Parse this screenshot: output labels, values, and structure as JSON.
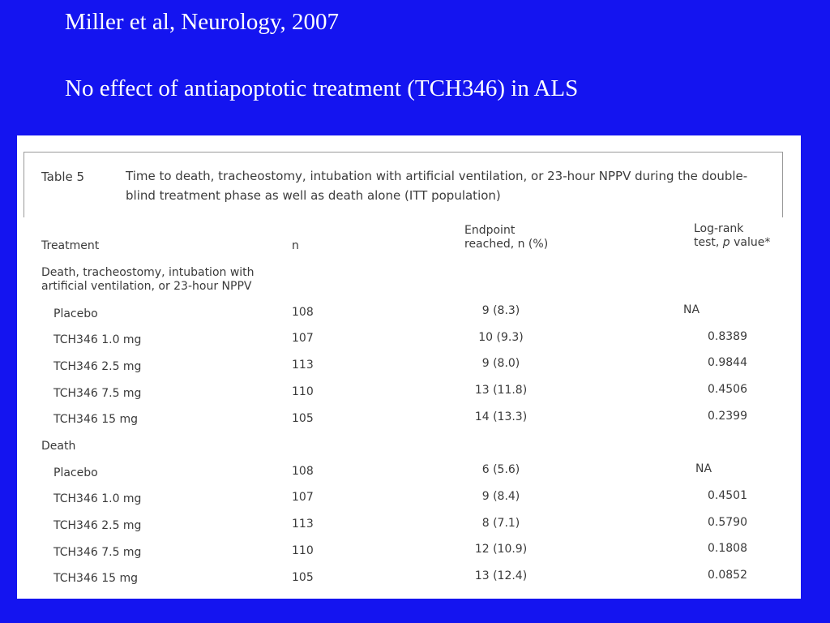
{
  "slide": {
    "title1": "Miller et al, Neurology, 2007",
    "title2": "No effect of antiapoptotic treatment (TCH346) in ALS"
  },
  "table": {
    "label": "Table 5",
    "caption": "Time to death, tracheostomy, intubation with artificial ventilation, or 23-hour NPPV during the double-blind treatment phase as well as death alone (ITT population)",
    "headers": {
      "treatment": "Treatment",
      "n": "n",
      "endpoint_line1": "Endpoint",
      "endpoint_line2": "reached, n (%)",
      "logrank_line1": "Log-rank",
      "logrank_line2_prefix": "test, ",
      "logrank_line2_p": "p",
      "logrank_line2_suffix": " value*"
    },
    "groups": [
      {
        "title_line1": "Death, tracheostomy, intubation with",
        "title_line2": "artificial ventilation, or 23-hour NPPV",
        "rows": [
          {
            "treatment": "Placebo",
            "n": "108",
            "endpoint": "9 (8.3)",
            "p": "NA"
          },
          {
            "treatment": "TCH346 1.0 mg",
            "n": "107",
            "endpoint": "10 (9.3)",
            "p": "0.8389"
          },
          {
            "treatment": "TCH346 2.5 mg",
            "n": "113",
            "endpoint": "9 (8.0)",
            "p": "0.9844"
          },
          {
            "treatment": "TCH346 7.5 mg",
            "n": "110",
            "endpoint": "13 (11.8)",
            "p": "0.4506"
          },
          {
            "treatment": "TCH346 15 mg",
            "n": "105",
            "endpoint": "14 (13.3)",
            "p": "0.2399"
          }
        ]
      },
      {
        "title_line1": "Death",
        "title_line2": "",
        "rows": [
          {
            "treatment": "Placebo",
            "n": "108",
            "endpoint": "6 (5.6)",
            "p": "NA"
          },
          {
            "treatment": "TCH346 1.0 mg",
            "n": "107",
            "endpoint": "9 (8.4)",
            "p": "0.4501"
          },
          {
            "treatment": "TCH346 2.5 mg",
            "n": "113",
            "endpoint": "8 (7.1)",
            "p": "0.5790"
          },
          {
            "treatment": "TCH346 7.5 mg",
            "n": "110",
            "endpoint": "12 (10.9)",
            "p": "0.1808"
          },
          {
            "treatment": "TCH346 15 mg",
            "n": "105",
            "endpoint": "13 (12.4)",
            "p": "0.0852"
          }
        ]
      }
    ]
  }
}
